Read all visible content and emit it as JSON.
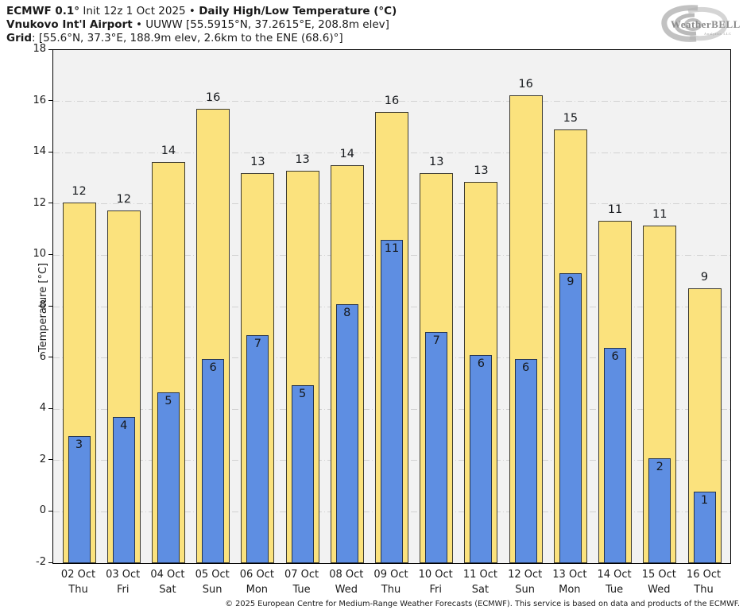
{
  "header": {
    "line1": {
      "model": "ECMWF 0.1°",
      "init": " Init 12z 1 Oct 2025 • ",
      "product": "Daily High/Low Temperature (°C)"
    },
    "line2": {
      "station": "Vnukovo Int'l Airport",
      "meta": " • UUWW [55.5915°N, 37.2615°E, 208.8m elev]"
    },
    "line3": {
      "label": "Grid",
      "meta": ": [55.6°N, 37.3°E, 188.9m elev, 2.6km to the ENE (68.6)°]"
    }
  },
  "logo": {
    "brand": "WeatherBELL",
    "sub": "Analytics LLC"
  },
  "footer": {
    "copyright": "© 2025 European Centre for Medium-Range Weather Forecasts (ECMWF). This service is based on data and products of the ECMWF."
  },
  "chart_data": {
    "type": "bar",
    "title": "ECMWF 0.1° Init 12z 1 Oct 2025 • Daily High/Low Temperature (°C)",
    "subtitle": "Vnukovo Int'l Airport • UUWW [55.5915°N, 37.2615°E, 208.8m elev]",
    "xlabel": "",
    "ylabel": "Temperature [°C]",
    "ylim": [
      -2,
      18
    ],
    "ytick_step": 2,
    "grid": true,
    "legend": "none",
    "categories": [
      {
        "date": "02 Oct",
        "day": "Thu"
      },
      {
        "date": "03 Oct",
        "day": "Fri"
      },
      {
        "date": "04 Oct",
        "day": "Sat"
      },
      {
        "date": "05 Oct",
        "day": "Sun"
      },
      {
        "date": "06 Oct",
        "day": "Mon"
      },
      {
        "date": "07 Oct",
        "day": "Tue"
      },
      {
        "date": "08 Oct",
        "day": "Wed"
      },
      {
        "date": "09 Oct",
        "day": "Thu"
      },
      {
        "date": "10 Oct",
        "day": "Fri"
      },
      {
        "date": "11 Oct",
        "day": "Sat"
      },
      {
        "date": "12 Oct",
        "day": "Sun"
      },
      {
        "date": "13 Oct",
        "day": "Mon"
      },
      {
        "date": "14 Oct",
        "day": "Tue"
      },
      {
        "date": "15 Oct",
        "day": "Wed"
      },
      {
        "date": "16 Oct",
        "day": "Thu"
      }
    ],
    "series": [
      {
        "name": "Daily High",
        "color": "#fbe27d",
        "edge_color": "#3c3a30",
        "values": [
          12.05,
          11.75,
          13.65,
          15.7,
          13.2,
          13.3,
          13.5,
          15.6,
          13.2,
          12.85,
          16.25,
          14.9,
          11.35,
          11.15,
          8.7
        ],
        "labels": [
          12,
          12,
          14,
          16,
          13,
          13,
          14,
          16,
          13,
          13,
          16,
          15,
          11,
          11,
          9
        ]
      },
      {
        "name": "Daily Low",
        "color": "#5e8ee2",
        "edge_color": "#25344d",
        "values": [
          2.95,
          3.7,
          4.65,
          5.95,
          6.9,
          4.95,
          8.1,
          10.6,
          7.0,
          6.1,
          5.95,
          9.3,
          6.4,
          2.1,
          0.8
        ],
        "labels": [
          3,
          4,
          5,
          6,
          7,
          5,
          8,
          11,
          7,
          6,
          6,
          9,
          6,
          2,
          1
        ]
      }
    ]
  }
}
